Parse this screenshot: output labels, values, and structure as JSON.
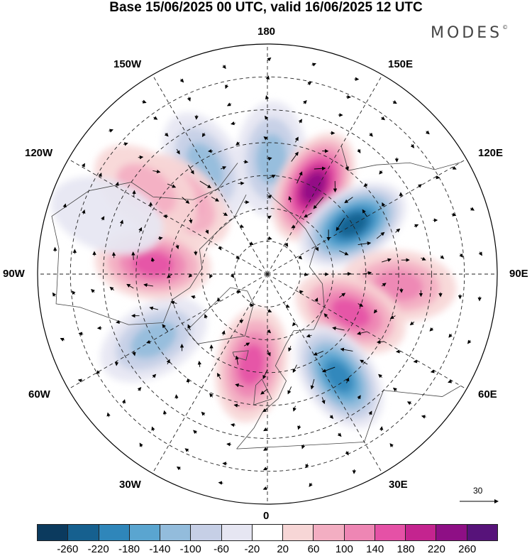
{
  "title": "Base 15/06/2025 00 UTC, valid 16/06/2025 12 UTC",
  "brand": "MODES",
  "brand_mark": "©",
  "longitude_labels": {
    "top": "180",
    "bottom": "0",
    "left": "90W",
    "right": "90E",
    "upper_left_outer": "150W",
    "upper_left": "120W",
    "lower_left": "60W",
    "lower_left_outer": "30W",
    "upper_right_outer": "150E",
    "upper_right": "120E",
    "lower_right": "60E",
    "lower_right_outer": "30E"
  },
  "reference_vector": {
    "label": "30"
  },
  "legend": {
    "colors": [
      "#0b3a5e",
      "#16608f",
      "#2f86ba",
      "#5aa5d0",
      "#93bcdc",
      "#c6cfe6",
      "#e6e6f2",
      "#ffffff",
      "#f7d6d6",
      "#f3aec2",
      "#ee86b4",
      "#e551a6",
      "#c4248f",
      "#8e0f85",
      "#57137a"
    ],
    "ticks": [
      "-260",
      "-220",
      "-180",
      "-140",
      "-100",
      "-60",
      "-20",
      "20",
      "60",
      "100",
      "140",
      "180",
      "220",
      "260"
    ]
  },
  "anomaly_centers": [
    {
      "lon": -150,
      "lat": 52,
      "value": -120
    },
    {
      "lon": -130,
      "lat": 55,
      "value": 90
    },
    {
      "lon": -125,
      "lat": 45,
      "value": 70
    },
    {
      "lon": 178,
      "lat": 55,
      "value": -110
    },
    {
      "lon": 152,
      "lat": 60,
      "value": 230
    },
    {
      "lon": 120,
      "lat": 60,
      "value": -230
    },
    {
      "lon": 85,
      "lat": 50,
      "value": 110
    },
    {
      "lon": 65,
      "lat": 62,
      "value": 150
    },
    {
      "lon": 35,
      "lat": 52,
      "value": -180
    },
    {
      "lon": -10,
      "lat": 62,
      "value": 160
    },
    {
      "lon": -60,
      "lat": 50,
      "value": -120
    },
    {
      "lon": -95,
      "lat": 55,
      "value": 130
    },
    {
      "lon": -110,
      "lat": 38,
      "value": -40
    }
  ]
}
